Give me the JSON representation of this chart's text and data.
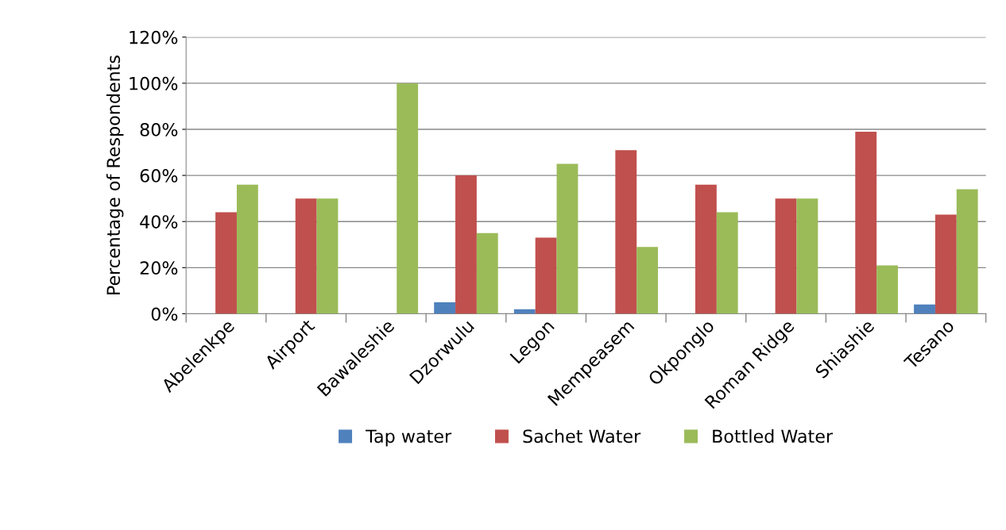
{
  "chart_data": {
    "type": "bar",
    "ylabel": "Percentage of Respondents",
    "categories": [
      "Abelenkpe",
      "Airport",
      "Bawaleshie",
      "Dzorwulu",
      "Legon",
      "Mempeasem",
      "Okponglo",
      "Roman Ridge",
      "Shiashie",
      "Tesano"
    ],
    "series": [
      {
        "name": "Tap water",
        "color": "#4f81bd",
        "values": [
          0,
          0,
          0,
          5,
          2,
          0,
          0,
          0,
          0,
          4
        ]
      },
      {
        "name": "Sachet Water",
        "color": "#c0504d",
        "values": [
          44,
          50,
          0,
          60,
          33,
          71,
          56,
          50,
          79,
          43
        ]
      },
      {
        "name": "Bottled Water",
        "color": "#9bbb59",
        "values": [
          56,
          50,
          100,
          35,
          65,
          29,
          44,
          50,
          21,
          54
        ]
      }
    ],
    "ylim": [
      0,
      120
    ],
    "yticks": [
      {
        "value": 0,
        "label": "0%"
      },
      {
        "value": 20,
        "label": "20%"
      },
      {
        "value": 40,
        "label": "40%"
      },
      {
        "value": 60,
        "label": "60%"
      },
      {
        "value": 80,
        "label": "80%"
      },
      {
        "value": 100,
        "label": "100%"
      },
      {
        "value": 120,
        "label": "120%"
      }
    ],
    "grid": "y",
    "legend": "bottom"
  }
}
